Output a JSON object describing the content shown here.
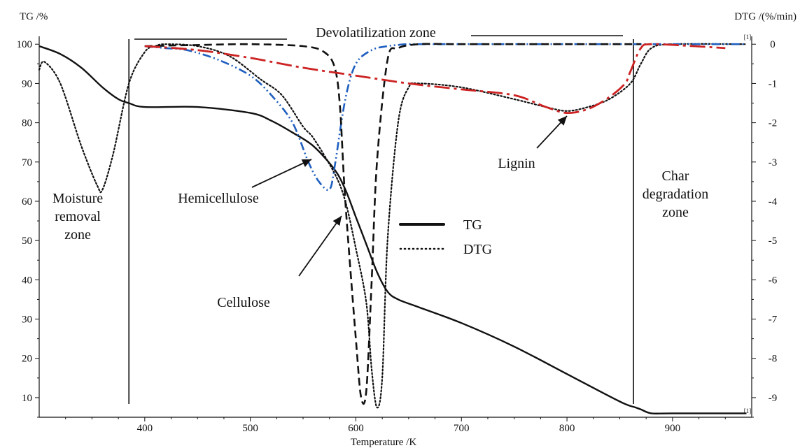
{
  "chart_data": {
    "type": "line",
    "xlabel": "Temperature /K",
    "ylabel": "TG /%",
    "y2label": "DTG /(%/min)",
    "xlim": [
      300,
      975
    ],
    "ylim": [
      5,
      102
    ],
    "y2lim": [
      -9.5,
      0.2
    ],
    "xticks": [
      400,
      500,
      600,
      700,
      800,
      900
    ],
    "yticks": [
      10,
      20,
      30,
      40,
      50,
      60,
      70,
      80,
      90,
      100
    ],
    "y2ticks": [
      0,
      -1,
      -2,
      -3,
      -4,
      -5,
      -6,
      -7,
      -8,
      -9
    ],
    "grid": false,
    "legend": {
      "position": "center",
      "entries": [
        {
          "label": "TG",
          "style": "solid"
        },
        {
          "label": "DTG",
          "style": "dotted"
        }
      ]
    },
    "series": [
      {
        "name": "TG",
        "axis": "left",
        "style": "solid",
        "color": "#111111",
        "x": [
          300,
          320,
          340,
          360,
          375,
          385,
          400,
          450,
          500,
          520,
          540,
          560,
          580,
          590,
          600,
          610,
          620,
          630,
          640,
          660,
          700,
          750,
          800,
          850,
          865,
          870,
          880,
          900,
          970
        ],
        "y": [
          99.5,
          97.5,
          94,
          89,
          86,
          85,
          84,
          84,
          82.5,
          80.5,
          77.5,
          74,
          68,
          63,
          56,
          49,
          42,
          37,
          35,
          33,
          29,
          23,
          16,
          9,
          7.5,
          7,
          6,
          6,
          6
        ]
      },
      {
        "name": "DTG",
        "axis": "right",
        "style": "dotted",
        "color": "#111111",
        "x": [
          300,
          305,
          320,
          340,
          355,
          360,
          370,
          385,
          400,
          410,
          420,
          450,
          480,
          510,
          530,
          550,
          560,
          580,
          590,
          600,
          610,
          615,
          620,
          625,
          630,
          640,
          650,
          660,
          700,
          750,
          780,
          800,
          820,
          840,
          860,
          870,
          880,
          900,
          970
        ],
        "y": [
          -0.65,
          -0.45,
          -1.0,
          -2.6,
          -3.6,
          -3.7,
          -2.8,
          -1.0,
          -0.2,
          -0.05,
          0,
          -0.05,
          -0.3,
          -0.9,
          -1.3,
          -2.1,
          -2.4,
          -3.3,
          -4.0,
          -5.2,
          -6.6,
          -8.3,
          -9.25,
          -8.5,
          -5.0,
          -2.0,
          -1.1,
          -1.0,
          -1.1,
          -1.4,
          -1.6,
          -1.7,
          -1.6,
          -1.4,
          -1.0,
          -0.5,
          -0.1,
          0,
          0
        ]
      },
      {
        "name": "",
        "axis": "right",
        "style": "dash-dot-dot",
        "color": "#1f5fbf",
        "x": [
          400,
          420,
          440,
          470,
          500,
          520,
          540,
          555,
          565,
          575,
          580,
          590,
          600,
          615,
          630,
          640,
          650,
          700,
          800,
          970
        ],
        "y": [
          -0.05,
          -0.1,
          -0.15,
          -0.4,
          -0.8,
          -1.3,
          -2.0,
          -3.0,
          -3.5,
          -3.7,
          -3.1,
          -1.4,
          -0.5,
          -0.15,
          -0.05,
          -0.02,
          0,
          0,
          0,
          0
        ]
      },
      {
        "name": "",
        "axis": "right",
        "style": "dashed",
        "color": "#111111",
        "x": [
          400,
          450,
          500,
          550,
          570,
          580,
          585,
          590,
          600,
          605,
          610,
          615,
          620,
          630,
          640,
          660,
          700,
          800,
          870
        ],
        "y": [
          -0.05,
          -0.02,
          0,
          -0.05,
          -0.2,
          -0.6,
          -1.6,
          -4.0,
          -7.5,
          -9.0,
          -8.8,
          -6.0,
          -3.0,
          -0.4,
          -0.1,
          0,
          0,
          0,
          0
        ]
      },
      {
        "name": "",
        "axis": "right",
        "style": "long-dash-dot",
        "color": "#cc2222",
        "x": [
          400,
          450,
          500,
          550,
          600,
          650,
          700,
          750,
          780,
          800,
          820,
          840,
          855,
          860,
          870,
          880,
          920,
          950
        ],
        "y": [
          -0.05,
          -0.15,
          -0.35,
          -0.6,
          -0.8,
          -1.0,
          -1.15,
          -1.3,
          -1.6,
          -1.75,
          -1.65,
          -1.35,
          -1.0,
          -0.7,
          -0.1,
          0,
          -0.05,
          -0.1
        ]
      }
    ],
    "vlines": [
      385,
      863
    ],
    "annotations": [
      {
        "key": "devol",
        "text": "Devolatilization zone"
      },
      {
        "key": "hemi",
        "text": "Hemicellulose"
      },
      {
        "key": "cell",
        "text": "Cellulose"
      },
      {
        "key": "lignin",
        "text": "Lignin"
      },
      {
        "key": "moist1",
        "text": "Moisture"
      },
      {
        "key": "moist2",
        "text": "removal"
      },
      {
        "key": "moist3",
        "text": "zone"
      },
      {
        "key": "char1",
        "text": "Char"
      },
      {
        "key": "char2",
        "text": "degradation"
      },
      {
        "key": "char3",
        "text": "zone"
      },
      {
        "key": "note-top",
        "text": "[1]"
      },
      {
        "key": "note-bottom",
        "text": "[1]"
      }
    ]
  }
}
